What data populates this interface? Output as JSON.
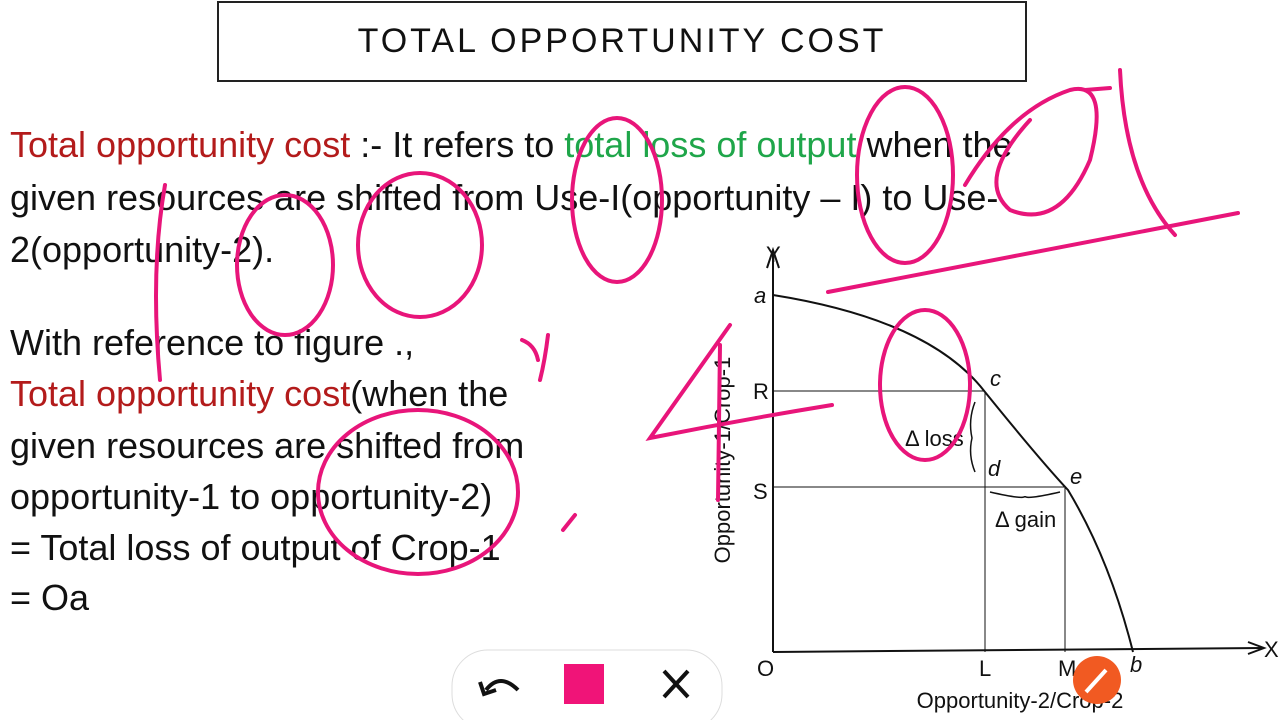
{
  "header": {
    "title": "TOTAL OPPORTUNITY COST"
  },
  "definition": {
    "lines": [
      [
        "Total opportunity cost",
        " :- It refers to ",
        "total loss of output",
        " when the"
      ],
      [
        "given resources are shifted from Use-I(opportunity – I) to Use-"
      ],
      [
        "2(opportunity-2)."
      ]
    ]
  },
  "explanation": {
    "lines": [
      [
        "With reference to figure .,"
      ],
      [
        "Total opportunity cost",
        "(when the"
      ],
      [
        "given resources are shifted from"
      ],
      [
        "opportunity-1 to opportunity-2)"
      ],
      [
        "= Total loss of output of Crop-1"
      ],
      [
        "= Oa"
      ]
    ]
  },
  "figure": {
    "y_axis": "Y",
    "x_axis": "X",
    "origin": "O",
    "points": {
      "a": "a",
      "R": "R",
      "S": "S",
      "c": "c",
      "d": "d",
      "e": "e",
      "L": "L",
      "M": "M",
      "b": "b"
    },
    "loss": "Δ loss",
    "gain": "Δ gain",
    "y_label": "Opportunity-1/Crop-1",
    "x_label": "Opportunity-2/Crop-2"
  }
}
